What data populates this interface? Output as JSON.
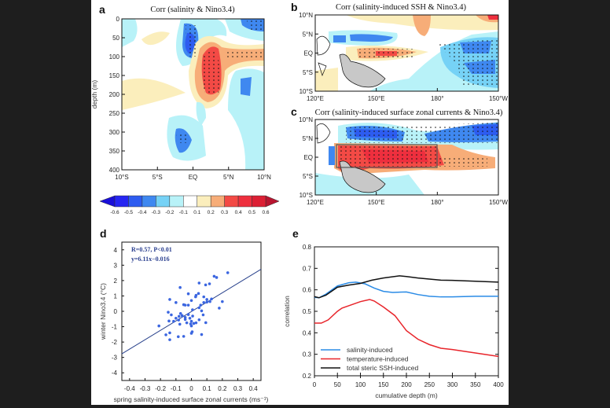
{
  "panels": {
    "a": {
      "label": "a",
      "title": "Corr (salinity & Nino3.4)",
      "ylabel": "depth (m)",
      "yticks": [
        "0",
        "50",
        "100",
        "150",
        "200",
        "250",
        "300",
        "350",
        "400"
      ],
      "xticks": [
        "10°S",
        "5°S",
        "EQ",
        "5°N",
        "10°N"
      ]
    },
    "b": {
      "label": "b",
      "title": "Corr (salinity-induced SSH & Nino3.4)",
      "yticks": [
        "10°N",
        "5°N",
        "EQ",
        "5°S",
        "10°S"
      ],
      "xticks": [
        "120°E",
        "150°E",
        "180°",
        "150°W"
      ]
    },
    "c": {
      "label": "c",
      "title": "Corr (salinity-induced surface zonal currents & Nino3.4)",
      "yticks": [
        "10°N",
        "5°N",
        "EQ",
        "5°S",
        "10°S"
      ],
      "xticks": [
        "120°E",
        "150°E",
        "180°",
        "150°W"
      ]
    },
    "colorbar": {
      "labels": [
        "-0.6",
        "-0.5",
        "-0.4",
        "-0.3",
        "-0.2",
        "-0.1",
        "0.1",
        "0.2",
        "0.3",
        "0.4",
        "0.5",
        "0.6"
      ],
      "colors": [
        "#2626f2",
        "#2d5cf0",
        "#3f88f0",
        "#76d2f6",
        "#b8f2f8",
        "#ffffff",
        "#fbeebc",
        "#f7ad78",
        "#f34a45",
        "#ee2f3e",
        "#dc1f34"
      ],
      "under": "#1a0fd9",
      "over": "#b81530"
    },
    "d": {
      "label": "d",
      "annotation1": "R=0.57,  P<0.01",
      "annotation2": "y=6.11x−0.016"
    },
    "e": {
      "label": "e"
    }
  },
  "chart_data": [
    {
      "type": "scatter",
      "xlabel": "spring salinity-induced surface zonal currents (ms⁻¹)",
      "ylabel": "winter Nino3.4 (°C)",
      "xlim": [
        -0.45,
        0.45
      ],
      "ylim": [
        -4.5,
        4.5
      ],
      "xticks": [
        "-0.4",
        "-0.3",
        "-0.2",
        "-0.1",
        "0",
        "0.1",
        "0.2",
        "0.3",
        "0.4"
      ],
      "yticks": [
        "-4",
        "-3",
        "-2",
        "-1",
        "0",
        "1",
        "2",
        "3",
        "4"
      ],
      "point_color": "#3b66e0",
      "fit": {
        "slope": 6.11,
        "intercept": -0.016,
        "color": "#27408b"
      },
      "points": [
        [
          0.235,
          2.51
        ],
        [
          0.147,
          2.28
        ],
        [
          0.163,
          2.2
        ],
        [
          0.05,
          1.84
        ],
        [
          0.092,
          1.72
        ],
        [
          0.117,
          1.79
        ],
        [
          -0.073,
          1.55
        ],
        [
          -0.02,
          1.14
        ],
        [
          0.046,
          1.16
        ],
        [
          0.03,
          1.04
        ],
        [
          0.027,
          0.94
        ],
        [
          0.08,
          0.94
        ],
        [
          -0.14,
          0.77
        ],
        [
          0.1,
          0.77
        ],
        [
          0.13,
          0.8
        ],
        [
          0,
          0.7
        ],
        [
          -0.1,
          0.57
        ],
        [
          0.2,
          0.63
        ],
        [
          -0.05,
          0.43
        ],
        [
          -0.04,
          0.4
        ],
        [
          -0.02,
          0.4
        ],
        [
          0.08,
          0.57
        ],
        [
          0.1,
          0.6
        ],
        [
          0.12,
          0.63
        ],
        [
          0.06,
          0.4
        ],
        [
          0.05,
          0.23
        ],
        [
          0.18,
          0.21
        ],
        [
          0.007,
          0.1
        ],
        [
          0.066,
          0.03
        ],
        [
          -0.15,
          -0.06
        ],
        [
          -0.07,
          -0.14
        ],
        [
          -0.13,
          -0.23
        ],
        [
          -0.02,
          -0.21
        ],
        [
          0.076,
          -0.23
        ],
        [
          -0.06,
          -0.28
        ],
        [
          -0.04,
          -0.4
        ],
        [
          0.008,
          -0.31
        ],
        [
          -0.08,
          -0.33
        ],
        [
          -0.1,
          -0.45
        ],
        [
          -0.01,
          -0.45
        ],
        [
          -0.145,
          -0.63
        ],
        [
          -0.115,
          -0.65
        ],
        [
          -0.083,
          -0.57
        ],
        [
          -0.04,
          -0.53
        ],
        [
          0.05,
          -0.55
        ],
        [
          0,
          -0.65
        ],
        [
          -0.21,
          -0.95
        ],
        [
          -0.075,
          -0.84
        ],
        [
          -0.03,
          -0.75
        ],
        [
          -0.005,
          -0.82
        ],
        [
          0.015,
          -0.79
        ],
        [
          0.03,
          -0.75
        ],
        [
          0.093,
          -0.74
        ],
        [
          0,
          -0.95
        ],
        [
          -0.165,
          -1.53
        ],
        [
          -0.14,
          -1.4
        ],
        [
          -0.085,
          -1.65
        ],
        [
          -0.05,
          -1.63
        ],
        [
          0.005,
          -1.33
        ],
        [
          0,
          -1.43
        ],
        [
          0.066,
          -1.51
        ],
        [
          -0.14,
          -1.85
        ]
      ]
    },
    {
      "type": "line",
      "xlabel": "cumulative depth (m)",
      "ylabel": "correlation",
      "xlim": [
        0,
        400
      ],
      "ylim": [
        0.2,
        0.8
      ],
      "xticks": [
        "0",
        "50",
        "100",
        "150",
        "200",
        "250",
        "300",
        "350",
        "400"
      ],
      "yticks": [
        "0.2",
        "0.3",
        "0.4",
        "0.5",
        "0.6",
        "0.7",
        "0.8"
      ],
      "legend": "bottom-left",
      "series": [
        {
          "name": "salinity-induced",
          "color": "#2a8be6",
          "x": [
            0,
            10,
            25,
            50,
            75,
            90,
            110,
            130,
            150,
            170,
            200,
            225,
            250,
            275,
            300,
            350,
            400
          ],
          "y": [
            0.565,
            0.563,
            0.58,
            0.618,
            0.633,
            0.636,
            0.628,
            0.608,
            0.593,
            0.588,
            0.59,
            0.578,
            0.57,
            0.567,
            0.567,
            0.57,
            0.57
          ]
        },
        {
          "name": "temperature-induced",
          "color": "#e8252b",
          "x": [
            0,
            15,
            30,
            50,
            60,
            80,
            100,
            120,
            130,
            150,
            175,
            200,
            225,
            250,
            275,
            300,
            350,
            400
          ],
          "y": [
            0.445,
            0.445,
            0.46,
            0.5,
            0.515,
            0.53,
            0.545,
            0.555,
            0.548,
            0.52,
            0.48,
            0.41,
            0.37,
            0.345,
            0.328,
            0.322,
            0.306,
            0.29
          ]
        },
        {
          "name": "total steric SSH-induced",
          "color": "#111111",
          "x": [
            0,
            10,
            25,
            50,
            75,
            100,
            125,
            150,
            185,
            200,
            225,
            250,
            275,
            300,
            350,
            400
          ],
          "y": [
            0.568,
            0.563,
            0.575,
            0.612,
            0.622,
            0.63,
            0.645,
            0.655,
            0.665,
            0.662,
            0.655,
            0.65,
            0.645,
            0.644,
            0.64,
            0.636
          ]
        }
      ]
    }
  ]
}
